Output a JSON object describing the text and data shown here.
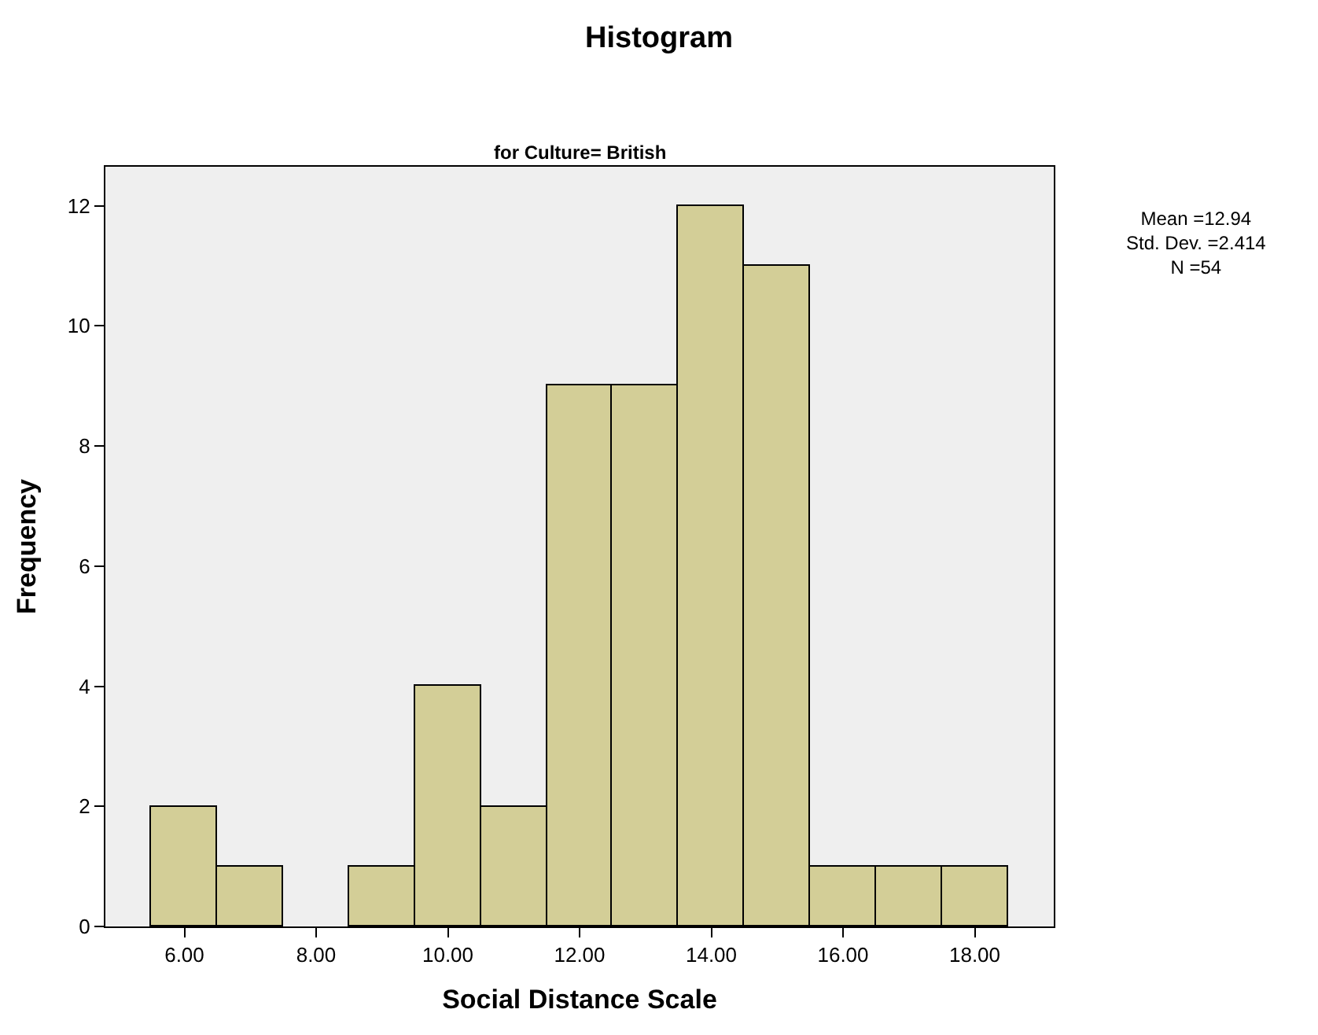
{
  "chart_data": {
    "type": "histogram",
    "title": "Histogram",
    "subtitle": "for Culture= British",
    "xlabel": "Social Distance Scale",
    "ylabel": "Frequency",
    "bins": [
      5.5,
      6.5,
      7.5,
      8.5,
      9.5,
      10.5,
      11.5,
      12.5,
      13.5,
      14.5,
      15.5,
      16.5,
      17.5,
      18.5
    ],
    "values": [
      2,
      1,
      0,
      1,
      4,
      2,
      9,
      9,
      12,
      11,
      1,
      1,
      1
    ],
    "color": "#d3ce97",
    "xlim": [
      4.8,
      19.2
    ],
    "xticks": [
      {
        "value": 6,
        "label": "6.00"
      },
      {
        "value": 8,
        "label": "8.00"
      },
      {
        "value": 10,
        "label": "10.00"
      },
      {
        "value": 12,
        "label": "12.00"
      },
      {
        "value": 14,
        "label": "14.00"
      },
      {
        "value": 16,
        "label": "16.00"
      },
      {
        "value": 18,
        "label": "18.00"
      }
    ],
    "ylim": [
      0,
      12.65
    ],
    "yticks": [
      0,
      2,
      4,
      6,
      8,
      10,
      12
    ],
    "annotations": [
      "Mean =12.94\nStd. Dev. =2.414\nN =54"
    ]
  }
}
